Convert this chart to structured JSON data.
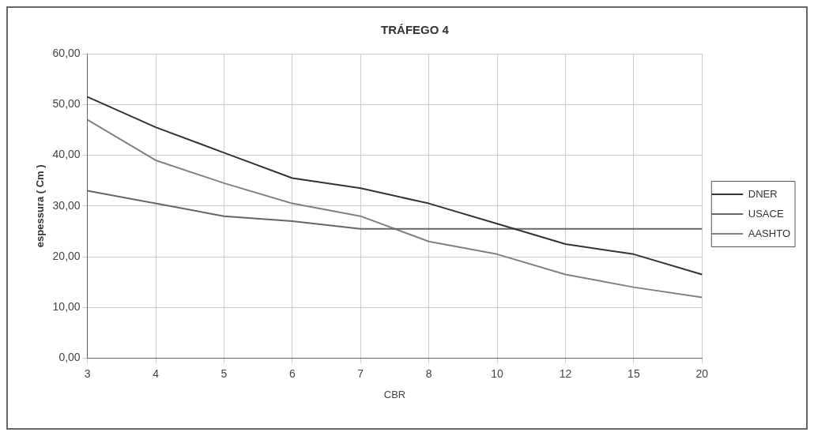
{
  "chart_data": {
    "type": "line",
    "title": "TRÁFEGO 4",
    "xlabel": "CBR",
    "ylabel": "espessura ( Cm )",
    "categories": [
      "3",
      "4",
      "5",
      "6",
      "7",
      "8",
      "10",
      "12",
      "15",
      "20"
    ],
    "series": [
      {
        "name": "DNER",
        "color": "#333333",
        "values": [
          51.5,
          45.5,
          40.5,
          35.5,
          33.5,
          30.5,
          26.5,
          22.5,
          20.5,
          16.5
        ]
      },
      {
        "name": "USACE",
        "color": "#666666",
        "values": [
          33,
          30.5,
          28,
          27,
          25.5,
          25.5,
          25.5,
          25.5,
          25.5,
          25.5
        ]
      },
      {
        "name": "AASHTO",
        "color": "#808080",
        "values": [
          47,
          39,
          34.5,
          30.5,
          28,
          23,
          20.5,
          16.5,
          14,
          12
        ]
      }
    ],
    "ylim": [
      0,
      60
    ],
    "yticks": [
      {
        "value": 0,
        "label": "0,00"
      },
      {
        "value": 10,
        "label": "10,00"
      },
      {
        "value": 20,
        "label": "20,00"
      },
      {
        "value": 30,
        "label": "30,00"
      },
      {
        "value": 40,
        "label": "40,00"
      },
      {
        "value": 50,
        "label": "50,00"
      },
      {
        "value": 60,
        "label": "60,00"
      }
    ],
    "grid": true,
    "legend": "right",
    "marker": "none",
    "line_style": "solid"
  }
}
